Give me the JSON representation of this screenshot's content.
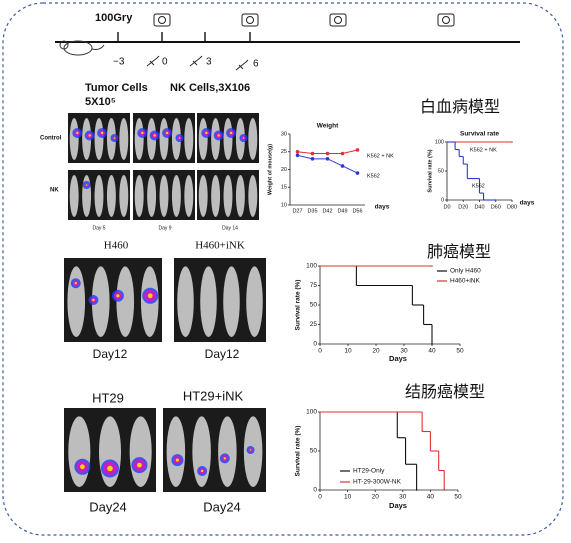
{
  "timeline": {
    "dose": "100Gry",
    "days": [
      "−3",
      "0",
      "3",
      "6"
    ]
  },
  "tumor_cells": {
    "label": "Tumor Cells",
    "dose": "5X10⁵"
  },
  "nk_cells": "NK Cells,3X106",
  "leukemia": {
    "title": "白血病模型",
    "image_rows": [
      "Control",
      "NK"
    ],
    "image_days": [
      "Day 5",
      "Day 9",
      "Day 14"
    ],
    "weight_chart": {
      "type": "line",
      "title": "Weight",
      "y_label": "Weight of mouse(g)",
      "x_label": "days",
      "categories": [
        "D27",
        "D35",
        "D42",
        "D49",
        "D56"
      ],
      "ylim": [
        10,
        30
      ],
      "yticks": [
        10,
        15,
        20,
        25,
        30
      ],
      "series": [
        {
          "name": "K562 + NK",
          "color": "#e03030",
          "values": [
            25,
            24.5,
            24.5,
            24.5,
            25.5
          ]
        },
        {
          "name": "K562",
          "color": "#2a3ad0",
          "values": [
            24,
            23,
            23,
            21,
            19
          ]
        }
      ]
    },
    "survival_chart": {
      "type": "survival",
      "title": "Survival rate",
      "y_label": "Survival rate (%)",
      "x_label": "days",
      "xlim": [
        0,
        80
      ],
      "xticks": [
        {
          "value": 0,
          "label": "D0"
        },
        {
          "value": 20,
          "label": "D20"
        },
        {
          "value": 40,
          "label": "D40"
        },
        {
          "value": 60,
          "label": "D60"
        },
        {
          "value": 80,
          "label": "D80"
        }
      ],
      "ylim": [
        0,
        100
      ],
      "yticks": [
        0,
        50,
        100
      ],
      "series": [
        {
          "name": "K562 + NK",
          "color": "#e03030",
          "x": [
            0,
            80
          ],
          "values": [
            100,
            100
          ]
        },
        {
          "name": "K562",
          "color": "#2a3ad0",
          "x": [
            0,
            10,
            15,
            20,
            25,
            40,
            45,
            60
          ],
          "values": [
            100,
            87,
            75,
            62,
            37,
            12,
            0,
            0
          ]
        }
      ]
    }
  },
  "lung": {
    "title": "肺癌模型",
    "groups": [
      "H460",
      "H460+iNK"
    ],
    "days": [
      "Day12",
      "Day12"
    ],
    "survival_chart": {
      "type": "survival",
      "y_label": "Survival rate (%)",
      "x_label": "Days",
      "xlim": [
        0,
        50
      ],
      "xticks": [
        0,
        10,
        20,
        30,
        40,
        50
      ],
      "ylim": [
        0,
        100
      ],
      "yticks": [
        0,
        25,
        50,
        75,
        100
      ],
      "series": [
        {
          "name": "Only H460",
          "color": "#111111",
          "x": [
            0,
            13,
            33,
            37,
            40,
            40
          ],
          "values": [
            100,
            75,
            50,
            25,
            0,
            0
          ]
        },
        {
          "name": "H460+iNK",
          "color": "#e03030",
          "x": [
            0,
            40
          ],
          "values": [
            100,
            100
          ]
        }
      ]
    }
  },
  "colon": {
    "title": "结肠癌模型",
    "groups": [
      "HT29",
      "HT29+iNK"
    ],
    "days": [
      "Day24",
      "Day24"
    ],
    "survival_chart": {
      "type": "survival",
      "y_label": "Survival rate (%)",
      "x_label": "Days",
      "xlim": [
        0,
        50
      ],
      "xticks": [
        0,
        10,
        20,
        30,
        40,
        50
      ],
      "ylim": [
        0,
        100
      ],
      "yticks": [
        0,
        50,
        100
      ],
      "series": [
        {
          "name": "HT29-Only",
          "color": "#111111",
          "x": [
            0,
            28,
            31,
            35,
            35
          ],
          "values": [
            100,
            67,
            33,
            0,
            0
          ]
        },
        {
          "name": "HT-29-300W-NK",
          "color": "#e03030",
          "x": [
            0,
            37,
            40,
            43,
            45,
            45
          ],
          "values": [
            100,
            75,
            50,
            25,
            0,
            0
          ]
        }
      ]
    }
  }
}
